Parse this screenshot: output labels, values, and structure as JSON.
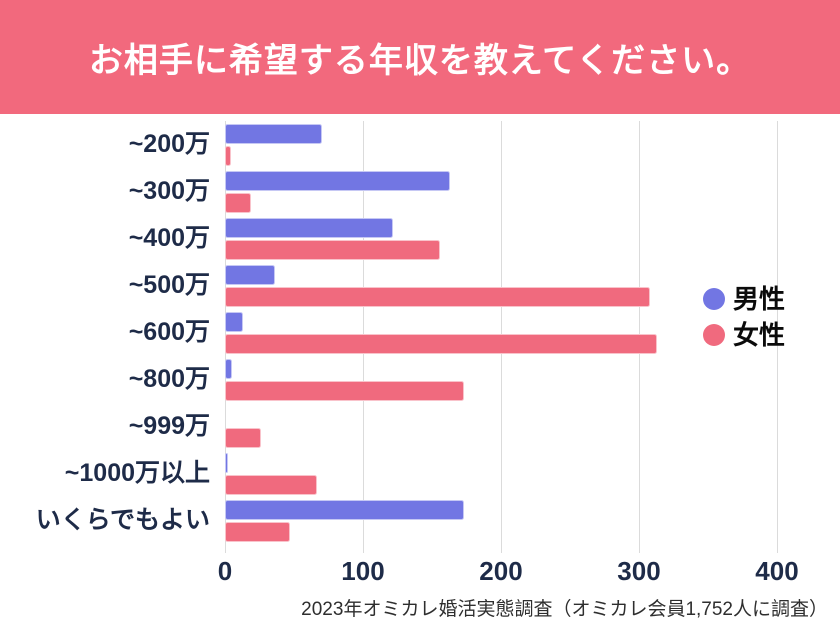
{
  "chart_data": {
    "type": "bar",
    "orientation": "horizontal",
    "title": "お相手に希望する年収を教えてください。",
    "source": "2023年オミカレ婚活実態調査（オミカレ会員1,752人に調査）",
    "categories": [
      "~200万",
      "~300万",
      "~400万",
      "~500万",
      "~600万",
      "~800万",
      "~999万",
      "~1000万以上",
      "いくらでもよい"
    ],
    "series": [
      {
        "key": "male",
        "name": "男性",
        "color": "#7276E3",
        "values": [
          70,
          163,
          122,
          36,
          13,
          5,
          0,
          2,
          173
        ]
      },
      {
        "key": "female",
        "name": "女性",
        "color": "#F06A7E",
        "values": [
          4,
          19,
          156,
          308,
          313,
          173,
          26,
          67,
          47
        ]
      }
    ],
    "xlabel": "",
    "ylabel": "",
    "xlim": [
      0,
      400
    ],
    "xticks": [
      0,
      100,
      200,
      300,
      400
    ],
    "grid": true,
    "legend_position": "right-middle"
  },
  "colors": {
    "banner_bg": "#F2697D",
    "banner_text": "#FFFFFF",
    "axis_label": "#1E2B48",
    "gridline": "#DBDBDB",
    "male": "#7276E3",
    "female": "#F06A7E",
    "legend_text": "#0B0B0B",
    "source_text": "#2E2E2E"
  }
}
